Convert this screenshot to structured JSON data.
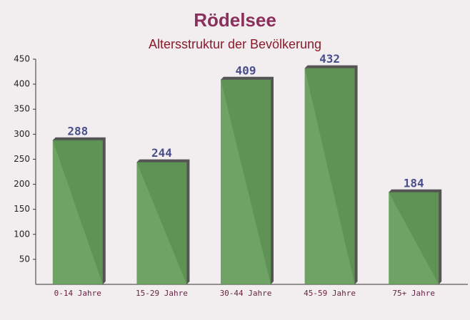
{
  "chart_data": {
    "type": "bar",
    "title": "Rödelsee",
    "subtitle": "Altersstruktur der Bevölkerung",
    "categories": [
      "0-14 Jahre",
      "15-29 Jahre",
      "30-44 Jahre",
      "45-59 Jahre",
      "75+ Jahre"
    ],
    "values": [
      288,
      244,
      409,
      432,
      184
    ],
    "color": "#5f9a55",
    "ylim": [
      0,
      450
    ],
    "yticks": [
      50,
      100,
      150,
      200,
      250,
      300,
      350,
      400,
      450
    ],
    "grid": false
  }
}
